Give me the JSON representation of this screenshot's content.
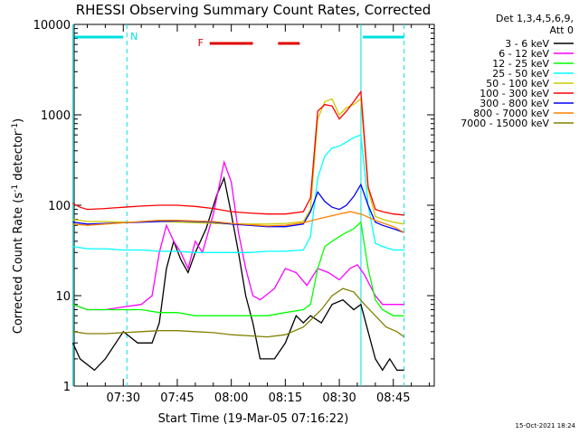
{
  "chart_data": {
    "type": "line",
    "title": "RHESSI Observing Summary Count Rates, Corrected",
    "xlabel": "Start Time (19-Mar-05 07:16:22)",
    "ylabel_main": "Corrected Count Rate (s",
    "ylabel_sup1": "-1",
    "ylabel_mid": " detector",
    "ylabel_sup2": "-1",
    "ylabel_end": ")",
    "y_scale": "log",
    "ylim": [
      1,
      10000
    ],
    "xlim_minutes": [
      "07:16:22",
      "08:56:22"
    ],
    "x_ticks": [
      "07:30",
      "07:45",
      "08:00",
      "08:15",
      "08:30",
      "08:45"
    ],
    "y_ticks": [
      "1",
      "10",
      "100",
      "1000",
      "10000"
    ],
    "legend_header": [
      "Det 1,3,4,5,6,9,",
      "Att 0"
    ],
    "legend_position": "right",
    "series": [
      {
        "name": "3 - 6 keV",
        "color": "#000000",
        "points": [
          [
            "07:16",
            3
          ],
          [
            "07:18",
            2
          ],
          [
            "07:22",
            1.5
          ],
          [
            "07:25",
            2
          ],
          [
            "07:30",
            4
          ],
          [
            "07:34",
            3
          ],
          [
            "07:38",
            3
          ],
          [
            "07:40",
            5
          ],
          [
            "07:42",
            20
          ],
          [
            "07:44",
            40
          ],
          [
            "07:46",
            25
          ],
          [
            "07:48",
            18
          ],
          [
            "07:50",
            30
          ],
          [
            "07:53",
            55
          ],
          [
            "07:56",
            130
          ],
          [
            "07:58",
            200
          ],
          [
            "08:00",
            80
          ],
          [
            "08:02",
            30
          ],
          [
            "08:04",
            10
          ],
          [
            "08:06",
            5
          ],
          [
            "08:08",
            2
          ],
          [
            "08:12",
            2
          ],
          [
            "08:15",
            3
          ],
          [
            "08:18",
            6
          ],
          [
            "08:20",
            5
          ],
          [
            "08:22",
            6
          ],
          [
            "08:25",
            5
          ],
          [
            "08:28",
            8
          ],
          [
            "08:31",
            9
          ],
          [
            "08:34",
            7
          ],
          [
            "08:36",
            8
          ],
          [
            "08:38",
            4
          ],
          [
            "08:40",
            2
          ],
          [
            "08:42",
            1.5
          ],
          [
            "08:44",
            2
          ],
          [
            "08:46",
            1.5
          ],
          [
            "08:48",
            1.5
          ]
        ]
      },
      {
        "name": "6 - 12 keV",
        "color": "#ff00ff",
        "points": [
          [
            "07:16",
            8
          ],
          [
            "07:20",
            7
          ],
          [
            "07:25",
            7
          ],
          [
            "07:30",
            7.5
          ],
          [
            "07:35",
            8
          ],
          [
            "07:38",
            10
          ],
          [
            "07:40",
            30
          ],
          [
            "07:42",
            60
          ],
          [
            "07:44",
            40
          ],
          [
            "07:46",
            30
          ],
          [
            "07:48",
            20
          ],
          [
            "07:50",
            40
          ],
          [
            "07:52",
            30
          ],
          [
            "07:55",
            80
          ],
          [
            "07:58",
            300
          ],
          [
            "08:00",
            180
          ],
          [
            "08:02",
            50
          ],
          [
            "08:04",
            20
          ],
          [
            "08:06",
            10
          ],
          [
            "08:08",
            9
          ],
          [
            "08:12",
            12
          ],
          [
            "08:15",
            20
          ],
          [
            "08:18",
            18
          ],
          [
            "08:21",
            13
          ],
          [
            "08:24",
            20
          ],
          [
            "08:27",
            18
          ],
          [
            "08:30",
            15
          ],
          [
            "08:33",
            20
          ],
          [
            "08:35",
            22
          ],
          [
            "08:37",
            17
          ],
          [
            "08:40",
            10
          ],
          [
            "08:42",
            8
          ],
          [
            "08:44",
            8
          ],
          [
            "08:48",
            8
          ]
        ]
      },
      {
        "name": "12 - 25 keV",
        "color": "#00ff00",
        "points": [
          [
            "07:16",
            8
          ],
          [
            "07:20",
            7
          ],
          [
            "07:25",
            7
          ],
          [
            "07:30",
            7
          ],
          [
            "07:35",
            7
          ],
          [
            "07:40",
            6.5
          ],
          [
            "07:45",
            6.5
          ],
          [
            "07:50",
            6
          ],
          [
            "07:55",
            6
          ],
          [
            "08:00",
            6
          ],
          [
            "08:05",
            6
          ],
          [
            "08:10",
            6
          ],
          [
            "08:15",
            6.5
          ],
          [
            "08:20",
            7
          ],
          [
            "08:22",
            8
          ],
          [
            "08:24",
            20
          ],
          [
            "08:26",
            35
          ],
          [
            "08:28",
            40
          ],
          [
            "08:30",
            45
          ],
          [
            "08:32",
            50
          ],
          [
            "08:34",
            55
          ],
          [
            "08:36",
            65
          ],
          [
            "08:38",
            20
          ],
          [
            "08:40",
            9
          ],
          [
            "08:42",
            7
          ],
          [
            "08:45",
            6
          ],
          [
            "08:48",
            6
          ]
        ]
      },
      {
        "name": "25 - 50 keV",
        "color": "#00ffff",
        "points": [
          [
            "07:16",
            35
          ],
          [
            "07:20",
            33
          ],
          [
            "07:25",
            33
          ],
          [
            "07:30",
            32
          ],
          [
            "07:35",
            32
          ],
          [
            "07:40",
            31
          ],
          [
            "07:45",
            31
          ],
          [
            "07:50",
            30
          ],
          [
            "07:55",
            30
          ],
          [
            "08:00",
            30
          ],
          [
            "08:05",
            30
          ],
          [
            "08:10",
            31
          ],
          [
            "08:15",
            31
          ],
          [
            "08:20",
            32
          ],
          [
            "08:22",
            45
          ],
          [
            "08:24",
            200
          ],
          [
            "08:26",
            350
          ],
          [
            "08:28",
            430
          ],
          [
            "08:30",
            450
          ],
          [
            "08:32",
            500
          ],
          [
            "08:34",
            560
          ],
          [
            "08:36",
            600
          ],
          [
            "08:38",
            100
          ],
          [
            "08:40",
            38
          ],
          [
            "08:42",
            35
          ],
          [
            "08:45",
            32
          ],
          [
            "08:48",
            32
          ]
        ]
      },
      {
        "name": "50 - 100 keV",
        "color": "#cccc00",
        "points": [
          [
            "07:16",
            70
          ],
          [
            "07:20",
            66
          ],
          [
            "07:25",
            66
          ],
          [
            "07:30",
            65
          ],
          [
            "07:35",
            65
          ],
          [
            "07:40",
            66
          ],
          [
            "07:45",
            65
          ],
          [
            "07:50",
            64
          ],
          [
            "07:55",
            63
          ],
          [
            "08:00",
            62
          ],
          [
            "08:05",
            62
          ],
          [
            "08:10",
            62
          ],
          [
            "08:15",
            63
          ],
          [
            "08:20",
            66
          ],
          [
            "08:22",
            90
          ],
          [
            "08:24",
            900
          ],
          [
            "08:26",
            1400
          ],
          [
            "08:28",
            1500
          ],
          [
            "08:30",
            1000
          ],
          [
            "08:32",
            1200
          ],
          [
            "08:34",
            1300
          ],
          [
            "08:36",
            1500
          ],
          [
            "08:38",
            150
          ],
          [
            "08:40",
            75
          ],
          [
            "08:42",
            70
          ],
          [
            "08:45",
            65
          ],
          [
            "08:48",
            62
          ]
        ]
      },
      {
        "name": "100 - 300 keV",
        "color": "#ff0000",
        "points": [
          [
            "07:16",
            105
          ],
          [
            "07:18",
            95
          ],
          [
            "07:20",
            90
          ],
          [
            "07:25",
            92
          ],
          [
            "07:30",
            95
          ],
          [
            "07:35",
            98
          ],
          [
            "07:40",
            100
          ],
          [
            "07:45",
            100
          ],
          [
            "07:50",
            97
          ],
          [
            "07:55",
            92
          ],
          [
            "08:00",
            85
          ],
          [
            "08:05",
            82
          ],
          [
            "08:10",
            80
          ],
          [
            "08:15",
            80
          ],
          [
            "08:20",
            85
          ],
          [
            "08:22",
            120
          ],
          [
            "08:24",
            1100
          ],
          [
            "08:26",
            1300
          ],
          [
            "08:28",
            1250
          ],
          [
            "08:30",
            900
          ],
          [
            "08:32",
            1100
          ],
          [
            "08:34",
            1400
          ],
          [
            "08:36",
            1800
          ],
          [
            "08:38",
            160
          ],
          [
            "08:40",
            90
          ],
          [
            "08:42",
            85
          ],
          [
            "08:45",
            80
          ],
          [
            "08:48",
            78
          ]
        ]
      },
      {
        "name": "300 - 800 keV",
        "color": "#0000ff",
        "points": [
          [
            "07:16",
            65
          ],
          [
            "07:20",
            62
          ],
          [
            "07:25",
            63
          ],
          [
            "07:30",
            64
          ],
          [
            "07:35",
            65
          ],
          [
            "07:40",
            66
          ],
          [
            "07:45",
            67
          ],
          [
            "07:50",
            66
          ],
          [
            "07:55",
            65
          ],
          [
            "08:00",
            62
          ],
          [
            "08:05",
            60
          ],
          [
            "08:10",
            58
          ],
          [
            "08:15",
            58
          ],
          [
            "08:20",
            62
          ],
          [
            "08:22",
            85
          ],
          [
            "08:24",
            140
          ],
          [
            "08:26",
            110
          ],
          [
            "08:28",
            95
          ],
          [
            "08:30",
            90
          ],
          [
            "08:32",
            100
          ],
          [
            "08:34",
            125
          ],
          [
            "08:36",
            170
          ],
          [
            "08:38",
            100
          ],
          [
            "08:40",
            65
          ],
          [
            "08:42",
            60
          ],
          [
            "08:45",
            55
          ],
          [
            "08:48",
            50
          ]
        ]
      },
      {
        "name": "800 - 7000 keV",
        "color": "#ff8000",
        "points": [
          [
            "07:16",
            62
          ],
          [
            "07:20",
            60
          ],
          [
            "07:25",
            62
          ],
          [
            "07:30",
            64
          ],
          [
            "07:35",
            66
          ],
          [
            "07:40",
            68
          ],
          [
            "07:45",
            68
          ],
          [
            "07:50",
            67
          ],
          [
            "07:55",
            66
          ],
          [
            "08:00",
            63
          ],
          [
            "08:05",
            61
          ],
          [
            "08:10",
            59
          ],
          [
            "08:15",
            60
          ],
          [
            "08:20",
            64
          ],
          [
            "08:25",
            72
          ],
          [
            "08:30",
            80
          ],
          [
            "08:33",
            85
          ],
          [
            "08:36",
            80
          ],
          [
            "08:40",
            68
          ],
          [
            "08:45",
            58
          ],
          [
            "08:48",
            50
          ]
        ]
      },
      {
        "name": "7000 - 15000 keV",
        "color": "#808000",
        "points": [
          [
            "07:16",
            4
          ],
          [
            "07:20",
            3.8
          ],
          [
            "07:25",
            3.8
          ],
          [
            "07:30",
            3.9
          ],
          [
            "07:35",
            4
          ],
          [
            "07:40",
            4.1
          ],
          [
            "07:45",
            4.1
          ],
          [
            "07:50",
            4
          ],
          [
            "07:55",
            3.9
          ],
          [
            "08:00",
            3.7
          ],
          [
            "08:05",
            3.6
          ],
          [
            "08:10",
            3.5
          ],
          [
            "08:15",
            3.7
          ],
          [
            "08:20",
            4.5
          ],
          [
            "08:25",
            7
          ],
          [
            "08:28",
            10
          ],
          [
            "08:31",
            12
          ],
          [
            "08:34",
            11
          ],
          [
            "08:37",
            8
          ],
          [
            "08:40",
            6
          ],
          [
            "08:43",
            4.5
          ],
          [
            "08:46",
            4
          ],
          [
            "08:48",
            3.5
          ]
        ]
      }
    ],
    "segments": {
      "night_label": "N",
      "flare_label": "F",
      "night_bars": [
        [
          "07:16",
          "07:30"
        ],
        [
          "08:36",
          "08:48"
        ]
      ],
      "flare_bars": [
        [
          "07:54",
          "08:06"
        ],
        [
          "08:13",
          "08:19"
        ]
      ],
      "boundary_dashed": [
        "07:31",
        "08:48"
      ],
      "boundary_solid": [
        "07:16",
        "08:36"
      ]
    }
  },
  "timestamp": "15-Oct-2021 18:24"
}
